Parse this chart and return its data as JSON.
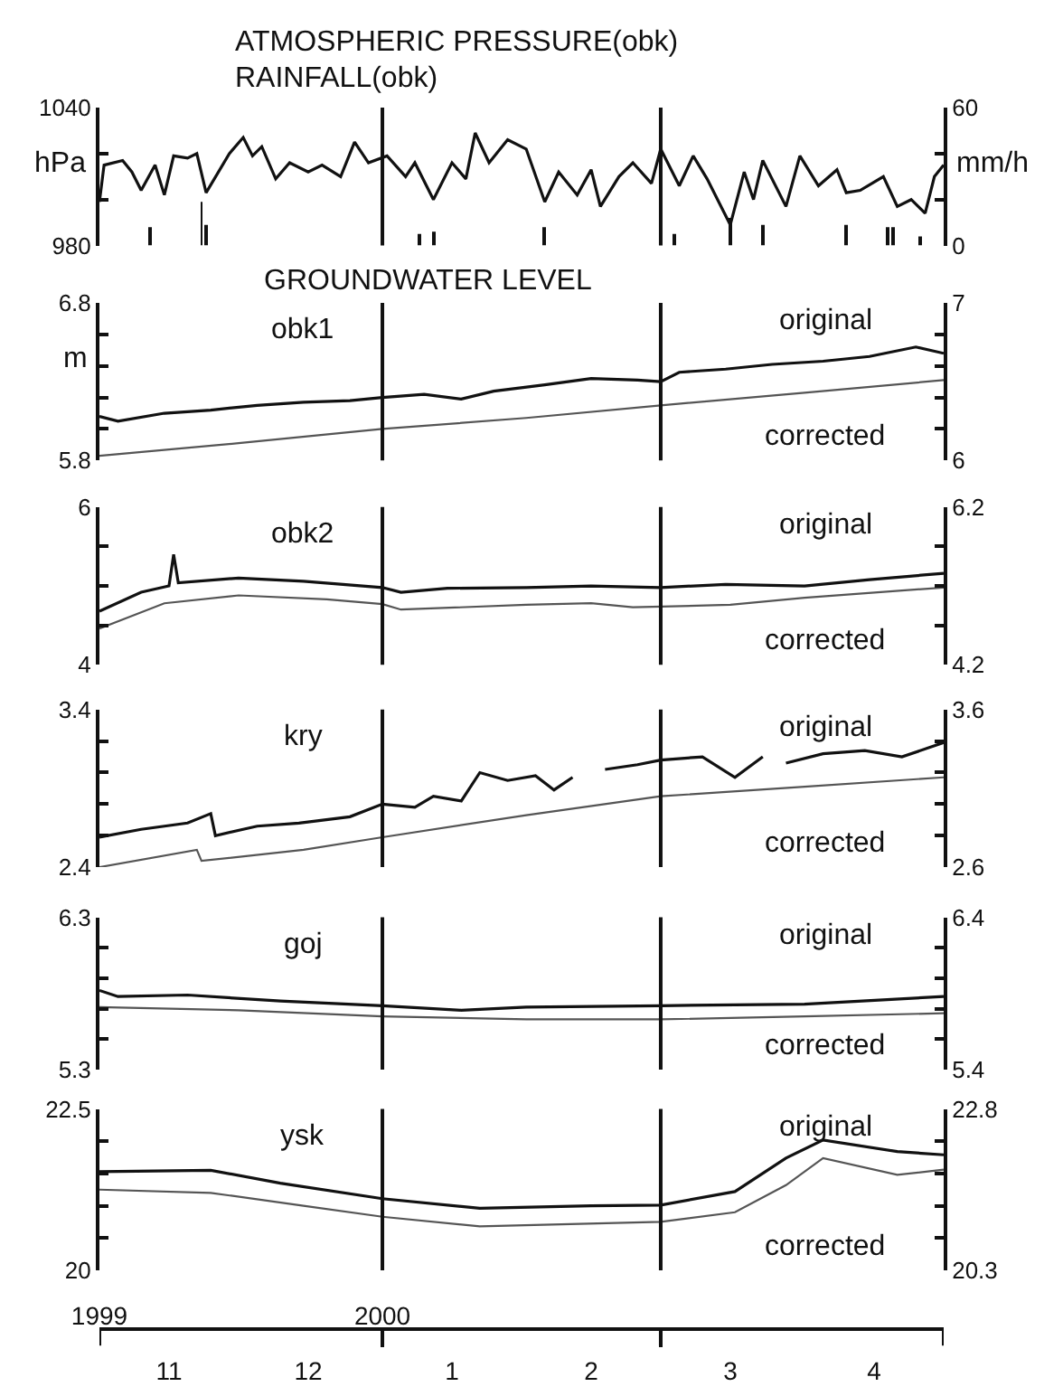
{
  "chart_data": [
    {
      "type": "line",
      "title": "ATMOSPHERIC PRESSURE(obk)",
      "subtitle": "RAINFALL(obk)",
      "ylabel": "hPa",
      "y2label": "mm/h",
      "tick_labels": "y",
      "xlim": [
        "1999-11-01",
        "2000-05-01"
      ],
      "ylim": [
        980,
        1040
      ],
      "yticks": [
        1040,
        {
          "value": 1020,
          "label": null
        },
        {
          "value": 1000,
          "label": null
        },
        980
      ],
      "y2lim": [
        0,
        60
      ],
      "y2ticks": [
        60,
        {
          "value": 40,
          "label": null
        },
        {
          "value": 20,
          "label": null
        },
        0
      ],
      "ref_lines": [
        {
          "axis": "x",
          "value": "2000-01-01"
        },
        {
          "axis": "x",
          "value": "2000-03-01"
        }
      ],
      "series": [
        {
          "type": "line",
          "color": "#111111",
          "x": [
            "1999-11-01",
            "1999-11-02",
            "1999-11-06",
            "1999-11-08",
            "1999-11-10",
            "1999-11-13",
            "1999-11-15",
            "1999-11-17",
            "1999-11-20",
            "1999-11-22",
            "1999-11-24",
            "1999-11-29",
            "1999-12-02",
            "1999-12-04",
            "1999-12-06",
            "1999-12-09",
            "1999-12-12",
            "1999-12-16",
            "1999-12-19",
            "1999-12-23",
            "1999-12-26",
            "1999-12-29",
            "2000-01-02",
            "2000-01-06",
            "2000-01-08",
            "2000-01-12",
            "2000-01-16",
            "2000-01-19",
            "2000-01-21",
            "2000-01-24",
            "2000-01-28",
            "2000-02-01",
            "2000-02-05",
            "2000-02-08",
            "2000-02-12",
            "2000-02-15",
            "2000-02-17",
            "2000-02-21",
            "2000-02-24",
            "2000-02-28",
            "2000-03-01",
            "2000-03-05",
            "2000-03-08",
            "2000-03-11",
            "2000-03-16",
            "2000-03-19",
            "2000-03-21",
            "2000-03-23",
            "2000-03-28",
            "2000-03-31",
            "2000-04-04",
            "2000-04-08",
            "2000-04-10",
            "2000-04-13",
            "2000-04-18",
            "2000-04-21",
            "2000-04-24",
            "2000-04-27",
            "2000-04-29",
            "2000-05-01"
          ],
          "values": [
            999,
            1015,
            1017,
            1012,
            1004,
            1015,
            1002,
            1019,
            1018,
            1020,
            1003,
            1020,
            1027,
            1019,
            1023,
            1009,
            1016,
            1012,
            1015,
            1010,
            1025,
            1016,
            1019,
            1010,
            1016,
            1000,
            1016,
            1009,
            1029,
            1016,
            1026,
            1022,
            999,
            1012,
            1002,
            1013,
            997,
            1010,
            1016,
            1007,
            1022,
            1006,
            1019,
            1009,
            989,
            1012,
            1000,
            1017,
            997,
            1019,
            1006,
            1013,
            1003,
            1004,
            1010,
            997,
            1000,
            994,
            1010,
            1015
          ]
        },
        {
          "type": "bar",
          "axis": "y2",
          "color": "#111111",
          "x": [
            "1999-11-12",
            "1999-11-23",
            "1999-11-24",
            "2000-01-09",
            "2000-01-12",
            "2000-02-05",
            "2000-03-04",
            "2000-03-16",
            "2000-03-23",
            "2000-04-10",
            "2000-04-19",
            "2000-04-20",
            "2000-04-26"
          ],
          "values": [
            8,
            19,
            9,
            5,
            6,
            8,
            5,
            12,
            9,
            9,
            8,
            8,
            4
          ]
        }
      ]
    },
    {
      "type": "line",
      "title": "GROUNDWATER LEVEL",
      "ylabel": "m",
      "annotations": [
        "obk1"
      ],
      "tick_labels": "y",
      "xlim": [
        "1999-11-01",
        "2000-05-01"
      ],
      "ylim": [
        5.8,
        6.8
      ],
      "yticks": [
        6.8,
        {
          "value": 6.6,
          "label": null
        },
        {
          "value": 6.4,
          "label": null
        },
        {
          "value": 6.2,
          "label": null
        },
        {
          "value": 6.0,
          "label": null
        },
        5.8
      ],
      "y2lim": [
        6,
        7
      ],
      "y2ticks": [
        7,
        {
          "value": 6.8,
          "label": null
        },
        {
          "value": 6.6,
          "label": null
        },
        {
          "value": 6.4,
          "label": null
        },
        {
          "value": 6.2,
          "label": null
        },
        6
      ],
      "ref_lines": [
        {
          "axis": "x",
          "value": "2000-01-01"
        },
        {
          "axis": "x",
          "value": "2000-03-01"
        }
      ],
      "series": [
        {
          "name": "original",
          "color": "#111111",
          "x": [
            "1999-11-01",
            "1999-11-05",
            "1999-11-15",
            "1999-11-25",
            "1999-12-05",
            "1999-12-15",
            "1999-12-25",
            "2000-01-01",
            "2000-01-10",
            "2000-01-18",
            "2000-01-25",
            "2000-02-05",
            "2000-02-15",
            "2000-02-25",
            "2000-03-01",
            "2000-03-05",
            "2000-03-15",
            "2000-03-25",
            "2000-04-05",
            "2000-04-15",
            "2000-04-25",
            "2000-05-01"
          ],
          "values": [
            6.08,
            6.05,
            6.1,
            6.12,
            6.15,
            6.17,
            6.18,
            6.2,
            6.22,
            6.19,
            6.24,
            6.28,
            6.32,
            6.31,
            6.3,
            6.36,
            6.38,
            6.41,
            6.43,
            6.46,
            6.52,
            6.48
          ]
        },
        {
          "name": "corrected",
          "axis": "y2",
          "color": "#555555",
          "x": [
            "1999-11-01",
            "1999-12-01",
            "2000-01-01",
            "2000-02-01",
            "2000-03-01",
            "2000-04-01",
            "2000-05-01"
          ],
          "values": [
            6.03,
            6.11,
            6.2,
            6.27,
            6.35,
            6.43,
            6.51
          ]
        }
      ]
    },
    {
      "type": "line",
      "annotations": [
        "obk2"
      ],
      "tick_labels": "y",
      "xlim": [
        "1999-11-01",
        "2000-05-01"
      ],
      "ylim": [
        4,
        6
      ],
      "yticks": [
        6,
        {
          "value": 5.5,
          "label": null
        },
        {
          "value": 5,
          "label": null
        },
        {
          "value": 4.5,
          "label": null
        },
        4
      ],
      "y2lim": [
        4.2,
        6.2
      ],
      "y2ticks": [
        6.2,
        {
          "value": 5.7,
          "label": null
        },
        {
          "value": 5.2,
          "label": null
        },
        {
          "value": 4.7,
          "label": null
        },
        4.2
      ],
      "ref_lines": [
        {
          "axis": "x",
          "value": "2000-01-01"
        },
        {
          "axis": "x",
          "value": "2000-03-01"
        }
      ],
      "series": [
        {
          "name": "original",
          "color": "#111111",
          "x": [
            "1999-11-01",
            "1999-11-10",
            "1999-11-16",
            "1999-11-17",
            "1999-11-18",
            "1999-12-01",
            "1999-12-15",
            "2000-01-01",
            "2000-01-05",
            "2000-01-15",
            "2000-02-01",
            "2000-02-15",
            "2000-03-01",
            "2000-03-15",
            "2000-04-01",
            "2000-04-15",
            "2000-05-01"
          ],
          "values": [
            4.68,
            4.92,
            5.0,
            5.4,
            5.04,
            5.1,
            5.06,
            4.98,
            4.92,
            4.97,
            4.98,
            5.0,
            4.98,
            5.02,
            5.0,
            5.08,
            5.16
          ]
        },
        {
          "name": "corrected",
          "axis": "y2",
          "color": "#555555",
          "x": [
            "1999-11-01",
            "1999-11-15",
            "1999-12-01",
            "1999-12-20",
            "2000-01-01",
            "2000-01-05",
            "2000-02-01",
            "2000-02-15",
            "2000-02-24",
            "2000-03-16",
            "2000-04-01",
            "2000-05-01"
          ],
          "values": [
            4.66,
            4.98,
            5.08,
            5.03,
            4.97,
            4.9,
            4.96,
            4.98,
            4.93,
            4.96,
            5.05,
            5.18
          ]
        }
      ]
    },
    {
      "type": "line",
      "annotations": [
        "kry"
      ],
      "tick_labels": "y",
      "xlim": [
        "1999-11-01",
        "2000-05-01"
      ],
      "ylim": [
        2.4,
        3.4
      ],
      "yticks": [
        3.4,
        {
          "value": 3.2,
          "label": null
        },
        {
          "value": 3.0,
          "label": null
        },
        {
          "value": 2.8,
          "label": null
        },
        {
          "value": 2.6,
          "label": null
        },
        2.4
      ],
      "y2lim": [
        2.6,
        3.6
      ],
      "y2ticks": [
        3.6,
        {
          "value": 3.4,
          "label": null
        },
        {
          "value": 3.2,
          "label": null
        },
        {
          "value": 3.0,
          "label": null
        },
        {
          "value": 2.8,
          "label": null
        },
        2.6
      ],
      "ref_lines": [
        {
          "axis": "x",
          "value": "2000-01-01"
        },
        {
          "axis": "x",
          "value": "2000-03-01"
        }
      ],
      "series": [
        {
          "name": "original",
          "color": "#111111",
          "x": [
            "1999-11-01",
            "1999-11-10",
            "1999-11-20",
            "1999-11-25",
            "1999-11-26",
            "1999-12-05",
            "1999-12-14",
            "1999-12-25",
            "2000-01-01",
            "2000-01-08",
            "2000-01-12",
            "2000-01-18",
            "2000-01-22",
            "2000-01-28",
            "2000-02-03",
            "2000-02-07",
            "2000-02-11",
            "2000-02-12",
            "2000-02-17",
            "2000-02-18",
            "2000-02-25",
            "2000-03-01",
            "2000-03-10",
            "2000-03-17",
            "2000-03-23",
            "2000-03-24",
            "2000-03-27",
            "2000-03-28",
            "2000-04-05",
            "2000-04-14",
            "2000-04-22",
            "2000-05-01"
          ],
          "values": [
            2.59,
            2.64,
            2.68,
            2.74,
            2.6,
            2.66,
            2.68,
            2.72,
            2.8,
            2.78,
            2.85,
            2.82,
            3.0,
            2.95,
            2.98,
            2.89,
            2.97,
            null,
            null,
            3.02,
            3.05,
            3.08,
            3.1,
            2.97,
            3.1,
            null,
            null,
            3.06,
            3.12,
            3.14,
            3.1,
            3.19
          ]
        },
        {
          "name": "corrected",
          "axis": "y2",
          "color": "#555555",
          "x": [
            "1999-11-01",
            "1999-11-22",
            "1999-11-23",
            "1999-12-15",
            "2000-01-01",
            "2000-02-01",
            "2000-03-01",
            "2000-04-01",
            "2000-05-01"
          ],
          "values": [
            2.6,
            2.71,
            2.64,
            2.71,
            2.79,
            2.93,
            3.05,
            3.11,
            3.17
          ]
        }
      ]
    },
    {
      "type": "line",
      "annotations": [
        "goj"
      ],
      "tick_labels": "y",
      "xlim": [
        "1999-11-01",
        "2000-05-01"
      ],
      "ylim": [
        5.3,
        6.3
      ],
      "yticks": [
        6.3,
        {
          "value": 6.1,
          "label": null
        },
        {
          "value": 5.9,
          "label": null
        },
        {
          "value": 5.7,
          "label": null
        },
        {
          "value": 5.5,
          "label": null
        },
        5.3
      ],
      "y2lim": [
        5.4,
        6.4
      ],
      "y2ticks": [
        6.4,
        {
          "value": 6.2,
          "label": null
        },
        {
          "value": 6.0,
          "label": null
        },
        {
          "value": 5.8,
          "label": null
        },
        {
          "value": 5.6,
          "label": null
        },
        5.4
      ],
      "ref_lines": [
        {
          "axis": "x",
          "value": "2000-01-01"
        },
        {
          "axis": "x",
          "value": "2000-03-01"
        }
      ],
      "series": [
        {
          "name": "original",
          "color": "#111111",
          "x": [
            "1999-11-01",
            "1999-11-05",
            "1999-11-20",
            "1999-12-10",
            "2000-01-01",
            "2000-01-18",
            "2000-02-01",
            "2000-03-01",
            "2000-04-01",
            "2000-05-01"
          ],
          "values": [
            5.82,
            5.78,
            5.79,
            5.75,
            5.72,
            5.69,
            5.71,
            5.72,
            5.73,
            5.78
          ]
        },
        {
          "name": "corrected",
          "axis": "y2",
          "color": "#555555",
          "x": [
            "1999-11-01",
            "1999-12-01",
            "2000-01-01",
            "2000-02-01",
            "2000-03-01",
            "2000-04-01",
            "2000-05-01"
          ],
          "values": [
            5.81,
            5.79,
            5.75,
            5.73,
            5.73,
            5.75,
            5.77
          ]
        }
      ]
    },
    {
      "type": "line",
      "annotations": [
        "ysk"
      ],
      "xlim": [
        "1999-11-01",
        "2000-05-01"
      ],
      "x2lim": [
        "1999-11-01",
        "2000-05-01"
      ],
      "x2ticks": [
        {
          "value": "1999-11-01",
          "label": "1999"
        },
        {
          "value": "2000-01-01",
          "label": "2000"
        },
        {
          "value": "2000-03-01",
          "label": null
        },
        {
          "value": "2000-05-01",
          "label": null
        }
      ],
      "xticks": [
        {
          "value": "1999-11-16",
          "label": "11"
        },
        {
          "value": "1999-12-16",
          "label": "12"
        },
        {
          "value": "2000-01-16",
          "label": "1"
        },
        {
          "value": "2000-02-15",
          "label": "2"
        },
        {
          "value": "2000-03-16",
          "label": "3"
        },
        {
          "value": "2000-04-16",
          "label": "4"
        }
      ],
      "ylim": [
        20,
        22.5
      ],
      "yticks": [
        22.5,
        {
          "value": 22,
          "label": null
        },
        {
          "value": 21.5,
          "label": null
        },
        {
          "value": 21,
          "label": null
        },
        {
          "value": 20.5,
          "label": null
        },
        20
      ],
      "y2lim": [
        20.3,
        22.8
      ],
      "y2ticks": [
        22.8,
        {
          "value": 22.3,
          "label": null
        },
        {
          "value": 21.8,
          "label": null
        },
        {
          "value": 21.3,
          "label": null
        },
        {
          "value": 20.8,
          "label": null
        },
        20.3
      ],
      "ref_lines": [
        {
          "axis": "x",
          "value": "2000-01-01"
        },
        {
          "axis": "x",
          "value": "2000-03-01"
        }
      ],
      "series": [
        {
          "name": "original",
          "color": "#111111",
          "x": [
            "1999-11-01",
            "1999-11-25",
            "1999-12-10",
            "2000-01-01",
            "2000-01-22",
            "2000-02-15",
            "2000-03-01",
            "2000-03-17",
            "2000-03-28",
            "2000-04-05",
            "2000-04-21",
            "2000-05-01"
          ],
          "values": [
            21.53,
            21.55,
            21.35,
            21.11,
            20.96,
            21.0,
            21.01,
            21.22,
            21.74,
            22.02,
            21.84,
            21.79
          ]
        },
        {
          "name": "corrected",
          "axis": "y2",
          "color": "#555555",
          "x": [
            "1999-11-01",
            "1999-11-25",
            "1999-12-15",
            "2000-01-01",
            "2000-01-22",
            "2000-03-01",
            "2000-03-17",
            "2000-03-28",
            "2000-04-05",
            "2000-04-21",
            "2000-05-01"
          ],
          "values": [
            21.55,
            21.5,
            21.3,
            21.13,
            20.98,
            21.05,
            21.2,
            21.62,
            22.04,
            21.78,
            21.86
          ]
        }
      ]
    }
  ]
}
